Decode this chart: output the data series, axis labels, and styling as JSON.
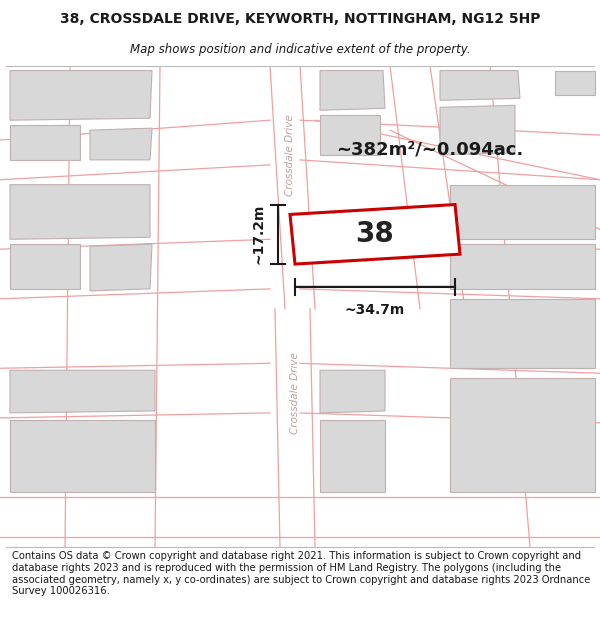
{
  "title": "38, CROSSDALE DRIVE, KEYWORTH, NOTTINGHAM, NG12 5HP",
  "subtitle": "Map shows position and indicative extent of the property.",
  "footer": "Contains OS data © Crown copyright and database right 2021. This information is subject to Crown copyright and database rights 2023 and is reproduced with the permission of HM Land Registry. The polygons (including the associated geometry, namely x, y co-ordinates) are subject to Crown copyright and database rights 2023 Ordnance Survey 100026316.",
  "area_label": "~382m²/~0.094ac.",
  "width_label": "~34.7m",
  "height_label": "~17.2m",
  "number_label": "38",
  "map_bg": "#ffffff",
  "road_line_color": "#f0a0a0",
  "building_color": "#d8d8d8",
  "building_line_color": "#c0b0b0",
  "highlight_color": "#cc0000",
  "highlight_fill": "#ffffff",
  "arrow_color": "#1a1a1a",
  "road_label_color": "#c0a0a0",
  "title_fontsize": 10,
  "subtitle_fontsize": 8.5,
  "footer_fontsize": 7.2
}
